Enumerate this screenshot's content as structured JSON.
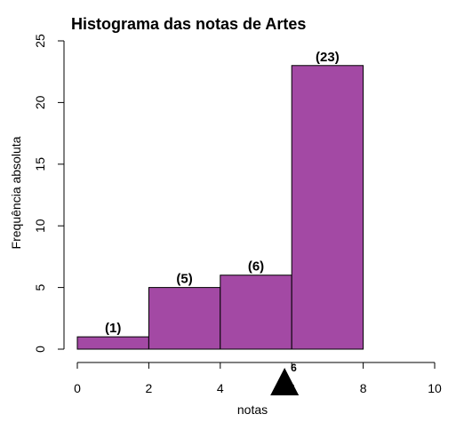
{
  "chart_data": {
    "type": "bar",
    "title": "Histograma das notas de Artes",
    "xlabel": "notas",
    "ylabel": "Frequência absoluta",
    "bins": [
      {
        "x0": 0,
        "x1": 2,
        "value": 1,
        "label": "(1)"
      },
      {
        "x0": 2,
        "x1": 4,
        "value": 5,
        "label": "(5)"
      },
      {
        "x0": 4,
        "x1": 6,
        "value": 6,
        "label": "(6)"
      },
      {
        "x0": 6,
        "x1": 8,
        "value": 23,
        "label": "(23)"
      }
    ],
    "xlim": [
      0,
      10
    ],
    "ylim": [
      0,
      25
    ],
    "xticks": [
      0,
      2,
      4,
      6,
      8,
      10
    ],
    "yticks": [
      0,
      5,
      10,
      15,
      20,
      25
    ],
    "marker": {
      "x": 5.8,
      "label": "6"
    },
    "bar_color": "#a349a4",
    "grid": false
  }
}
